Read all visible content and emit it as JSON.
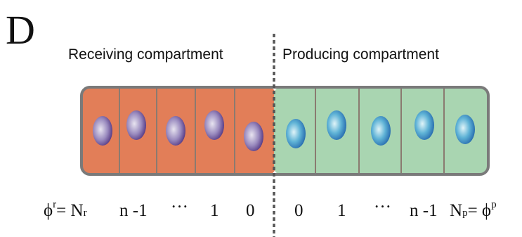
{
  "panel_label": "D",
  "compartments": {
    "receiving": "Receiving compartment",
    "producing": "Producing compartment"
  },
  "indices": {
    "receiving_edge": {
      "symbol": "ϕ",
      "sup": "r",
      "eq": "= N",
      "sub": "r"
    },
    "receiving": [
      "n -1",
      "···",
      "1",
      "0"
    ],
    "producing": [
      "0",
      "1",
      "···",
      "n -1"
    ],
    "producing_edge": {
      "base": "N",
      "sub": "p",
      "eq": "= ϕ",
      "sup": "p"
    }
  }
}
